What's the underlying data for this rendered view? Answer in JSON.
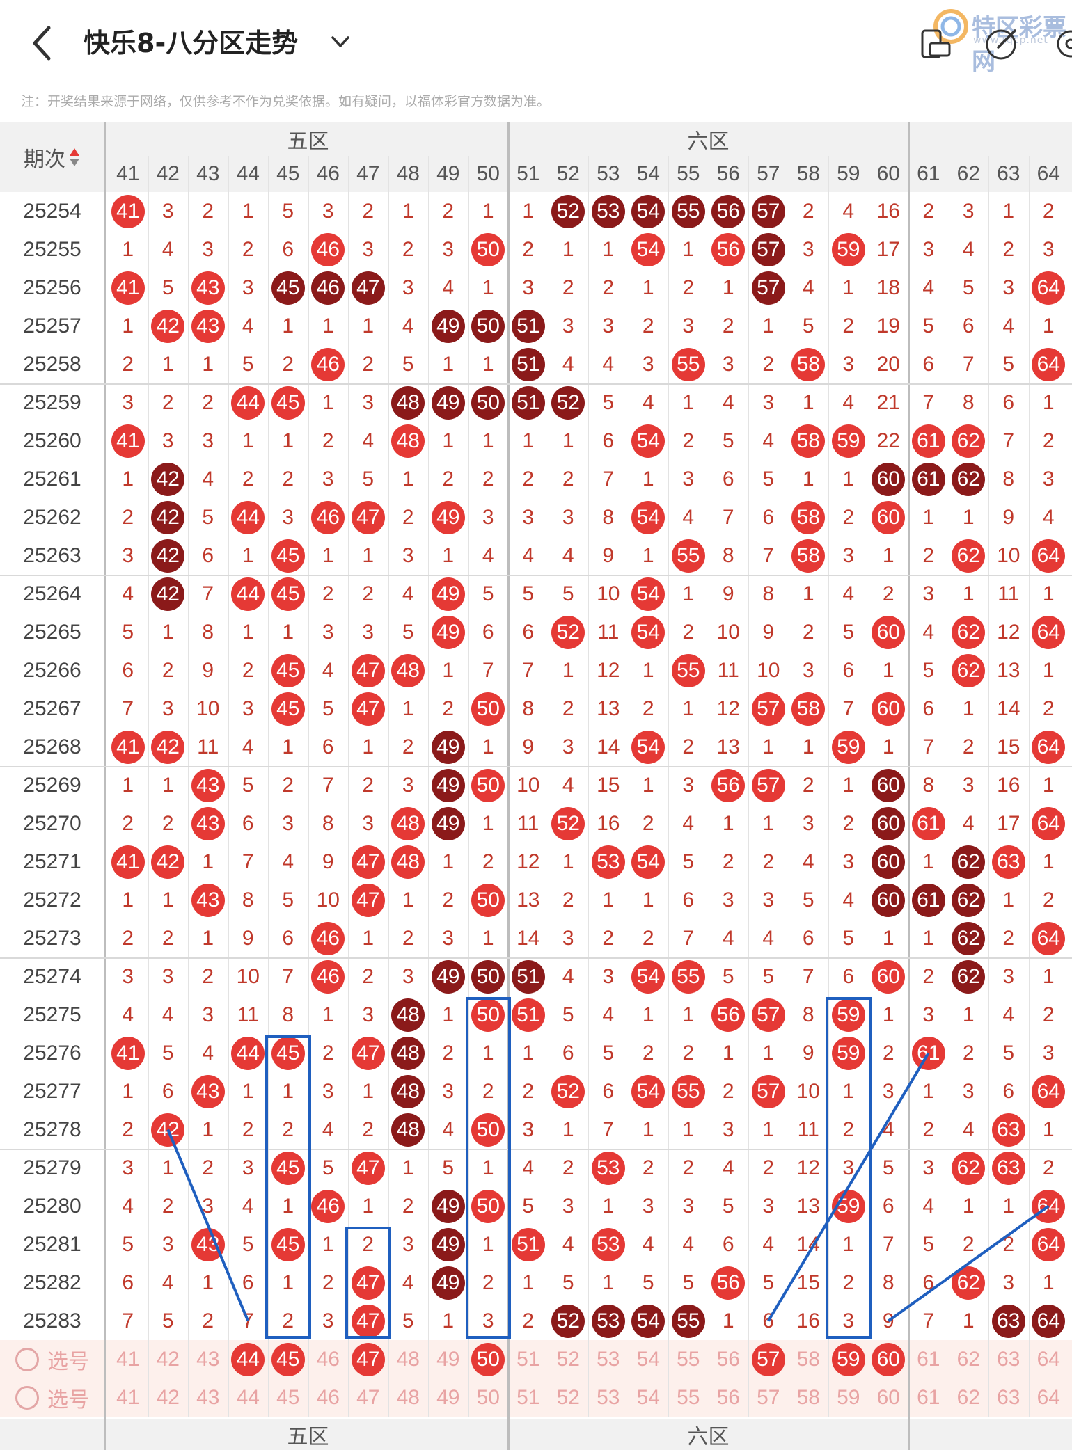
{
  "header": {
    "title": "快乐8-八分区走势",
    "watermark_text": "特区彩票网",
    "watermark_url": "www.tqcp.net"
  },
  "notice": "注：开奖结果来源于网络，仅供参考不作为兑奖依据。如有疑问，以福体彩官方数据为准。",
  "table": {
    "period_header": "期次",
    "zones": [
      {
        "label": "五区",
        "cols": [
          41,
          50
        ]
      },
      {
        "label": "六区",
        "cols": [
          51,
          60
        ]
      },
      {
        "label": "",
        "cols": [
          61,
          64
        ]
      }
    ],
    "columns": [
      "41",
      "42",
      "43",
      "44",
      "45",
      "46",
      "47",
      "48",
      "49",
      "50",
      "51",
      "52",
      "53",
      "54",
      "55",
      "56",
      "57",
      "58",
      "59",
      "60",
      "61",
      "62",
      "63",
      "64"
    ],
    "rows": [
      {
        "period": "25254",
        "cells": [
          "41",
          "3",
          "2",
          "1",
          "5",
          "3",
          "2",
          "1",
          "2",
          "1",
          "1",
          "52",
          "53",
          "54",
          "55",
          "56",
          "57",
          "2",
          "4",
          "16",
          "2",
          "3",
          "1",
          "2"
        ],
        "dark": [
          "52",
          "53",
          "54",
          "55",
          "56",
          "57"
        ]
      },
      {
        "period": "25255",
        "cells": [
          "1",
          "4",
          "3",
          "2",
          "6",
          "46",
          "3",
          "2",
          "3",
          "50",
          "2",
          "1",
          "1",
          "54",
          "1",
          "56",
          "57",
          "3",
          "59",
          "17",
          "3",
          "4",
          "2",
          "3"
        ],
        "dark": [
          "57"
        ]
      },
      {
        "period": "25256",
        "cells": [
          "41",
          "5",
          "43",
          "3",
          "45",
          "46",
          "47",
          "3",
          "4",
          "1",
          "3",
          "2",
          "2",
          "1",
          "2",
          "1",
          "57",
          "4",
          "1",
          "18",
          "4",
          "5",
          "3",
          "64"
        ],
        "dark": [
          "45",
          "46",
          "47",
          "57"
        ]
      },
      {
        "period": "25257",
        "cells": [
          "1",
          "42",
          "43",
          "4",
          "1",
          "1",
          "1",
          "4",
          "49",
          "50",
          "51",
          "3",
          "3",
          "2",
          "3",
          "2",
          "1",
          "5",
          "2",
          "19",
          "5",
          "6",
          "4",
          "1"
        ],
        "dark": [
          "49",
          "50",
          "51"
        ]
      },
      {
        "period": "25258",
        "cells": [
          "2",
          "1",
          "1",
          "5",
          "2",
          "46",
          "2",
          "5",
          "1",
          "1",
          "51",
          "4",
          "4",
          "3",
          "55",
          "3",
          "2",
          "58",
          "3",
          "20",
          "6",
          "7",
          "5",
          "64"
        ],
        "dark": [
          "51"
        ]
      },
      {
        "period": "25259",
        "cells": [
          "3",
          "2",
          "2",
          "44",
          "45",
          "1",
          "3",
          "48",
          "49",
          "50",
          "51",
          "52",
          "5",
          "4",
          "1",
          "4",
          "3",
          "1",
          "4",
          "21",
          "7",
          "8",
          "6",
          "1"
        ],
        "dark": [
          "48",
          "49",
          "50",
          "51",
          "52"
        ]
      },
      {
        "period": "25260",
        "cells": [
          "41",
          "3",
          "3",
          "1",
          "1",
          "2",
          "4",
          "48",
          "1",
          "1",
          "1",
          "1",
          "6",
          "54",
          "2",
          "5",
          "4",
          "58",
          "59",
          "22",
          "61",
          "62",
          "7",
          "2"
        ],
        "dark": []
      },
      {
        "period": "25261",
        "cells": [
          "1",
          "42",
          "4",
          "2",
          "2",
          "3",
          "5",
          "1",
          "2",
          "2",
          "2",
          "2",
          "7",
          "1",
          "3",
          "6",
          "5",
          "1",
          "1",
          "60",
          "61",
          "62",
          "8",
          "3"
        ],
        "dark": [
          "42",
          "60",
          "61",
          "62"
        ]
      },
      {
        "period": "25262",
        "cells": [
          "2",
          "42",
          "5",
          "44",
          "3",
          "46",
          "47",
          "2",
          "49",
          "3",
          "3",
          "3",
          "8",
          "54",
          "4",
          "7",
          "6",
          "58",
          "2",
          "60",
          "1",
          "1",
          "9",
          "4"
        ],
        "dark": [
          "42"
        ]
      },
      {
        "period": "25263",
        "cells": [
          "3",
          "42",
          "6",
          "1",
          "45",
          "1",
          "1",
          "3",
          "1",
          "4",
          "4",
          "4",
          "9",
          "1",
          "55",
          "8",
          "7",
          "58",
          "3",
          "1",
          "2",
          "62",
          "10",
          "64"
        ],
        "dark": [
          "42"
        ]
      },
      {
        "period": "25264",
        "cells": [
          "4",
          "42",
          "7",
          "44",
          "45",
          "2",
          "2",
          "4",
          "49",
          "5",
          "5",
          "5",
          "10",
          "54",
          "1",
          "9",
          "8",
          "1",
          "4",
          "2",
          "3",
          "1",
          "11",
          "1"
        ],
        "dark": [
          "42"
        ]
      },
      {
        "period": "25265",
        "cells": [
          "5",
          "1",
          "8",
          "1",
          "1",
          "3",
          "3",
          "5",
          "49",
          "6",
          "6",
          "52",
          "11",
          "54",
          "2",
          "10",
          "9",
          "2",
          "5",
          "60",
          "4",
          "62",
          "12",
          "64"
        ],
        "dark": []
      },
      {
        "period": "25266",
        "cells": [
          "6",
          "2",
          "9",
          "2",
          "45",
          "4",
          "47",
          "48",
          "1",
          "7",
          "7",
          "1",
          "12",
          "1",
          "55",
          "11",
          "10",
          "3",
          "6",
          "1",
          "5",
          "62",
          "13",
          "1"
        ],
        "dark": []
      },
      {
        "period": "25267",
        "cells": [
          "7",
          "3",
          "10",
          "3",
          "45",
          "5",
          "47",
          "1",
          "2",
          "50",
          "8",
          "2",
          "13",
          "2",
          "1",
          "12",
          "57",
          "58",
          "7",
          "60",
          "6",
          "1",
          "14",
          "2"
        ],
        "dark": []
      },
      {
        "period": "25268",
        "cells": [
          "41",
          "42",
          "11",
          "4",
          "1",
          "6",
          "1",
          "2",
          "49",
          "1",
          "9",
          "3",
          "14",
          "54",
          "2",
          "13",
          "1",
          "1",
          "59",
          "1",
          "7",
          "2",
          "15",
          "64"
        ],
        "dark": [
          "49"
        ]
      },
      {
        "period": "25269",
        "cells": [
          "1",
          "1",
          "43",
          "5",
          "2",
          "7",
          "2",
          "3",
          "49",
          "50",
          "10",
          "4",
          "15",
          "1",
          "3",
          "56",
          "57",
          "2",
          "1",
          "60",
          "8",
          "3",
          "16",
          "1"
        ],
        "dark": [
          "49",
          "60"
        ]
      },
      {
        "period": "25270",
        "cells": [
          "2",
          "2",
          "43",
          "6",
          "3",
          "8",
          "3",
          "48",
          "49",
          "1",
          "11",
          "52",
          "16",
          "2",
          "4",
          "1",
          "1",
          "3",
          "2",
          "60",
          "61",
          "4",
          "17",
          "64"
        ],
        "dark": [
          "49",
          "60"
        ]
      },
      {
        "period": "25271",
        "cells": [
          "41",
          "42",
          "1",
          "7",
          "4",
          "9",
          "47",
          "48",
          "1",
          "2",
          "12",
          "1",
          "53",
          "54",
          "5",
          "2",
          "2",
          "4",
          "3",
          "60",
          "1",
          "62",
          "63",
          "1"
        ],
        "dark": [
          "60",
          "62"
        ]
      },
      {
        "period": "25272",
        "cells": [
          "1",
          "1",
          "43",
          "8",
          "5",
          "10",
          "47",
          "1",
          "2",
          "50",
          "13",
          "2",
          "1",
          "1",
          "6",
          "3",
          "3",
          "5",
          "4",
          "60",
          "61",
          "62",
          "1",
          "2"
        ],
        "dark": [
          "60",
          "61",
          "62"
        ]
      },
      {
        "period": "25273",
        "cells": [
          "2",
          "2",
          "1",
          "9",
          "6",
          "46",
          "1",
          "2",
          "3",
          "1",
          "14",
          "3",
          "2",
          "2",
          "7",
          "4",
          "4",
          "6",
          "5",
          "1",
          "1",
          "62",
          "2",
          "64"
        ],
        "dark": [
          "62"
        ]
      },
      {
        "period": "25274",
        "cells": [
          "3",
          "3",
          "2",
          "10",
          "7",
          "46",
          "2",
          "3",
          "49",
          "50",
          "51",
          "4",
          "3",
          "54",
          "55",
          "5",
          "5",
          "7",
          "6",
          "60",
          "2",
          "62",
          "3",
          "1"
        ],
        "dark": [
          "49",
          "50",
          "51",
          "62"
        ]
      },
      {
        "period": "25275",
        "cells": [
          "4",
          "4",
          "3",
          "11",
          "8",
          "1",
          "3",
          "48",
          "1",
          "50",
          "51",
          "5",
          "4",
          "1",
          "1",
          "56",
          "57",
          "8",
          "59",
          "1",
          "3",
          "1",
          "4",
          "2"
        ],
        "dark": [
          "48"
        ]
      },
      {
        "period": "25276",
        "cells": [
          "41",
          "5",
          "4",
          "44",
          "45",
          "2",
          "47",
          "48",
          "2",
          "1",
          "1",
          "6",
          "5",
          "2",
          "2",
          "1",
          "1",
          "9",
          "59",
          "2",
          "61",
          "2",
          "5",
          "3"
        ],
        "dark": [
          "48"
        ]
      },
      {
        "period": "25277",
        "cells": [
          "1",
          "6",
          "43",
          "1",
          "1",
          "3",
          "1",
          "48",
          "3",
          "2",
          "2",
          "52",
          "6",
          "54",
          "55",
          "2",
          "57",
          "10",
          "1",
          "3",
          "1",
          "3",
          "6",
          "64"
        ],
        "dark": [
          "48"
        ]
      },
      {
        "period": "25278",
        "cells": [
          "2",
          "42",
          "1",
          "2",
          "2",
          "4",
          "2",
          "48",
          "4",
          "50",
          "3",
          "1",
          "7",
          "1",
          "1",
          "3",
          "1",
          "11",
          "2",
          "4",
          "2",
          "4",
          "63",
          "1"
        ],
        "dark": [
          "48"
        ]
      },
      {
        "period": "25279",
        "cells": [
          "3",
          "1",
          "2",
          "3",
          "45",
          "5",
          "47",
          "1",
          "5",
          "1",
          "4",
          "2",
          "53",
          "2",
          "2",
          "4",
          "2",
          "12",
          "3",
          "5",
          "3",
          "62",
          "63",
          "2"
        ],
        "dark": []
      },
      {
        "period": "25280",
        "cells": [
          "4",
          "2",
          "3",
          "4",
          "1",
          "46",
          "1",
          "2",
          "49",
          "50",
          "5",
          "3",
          "1",
          "3",
          "3",
          "5",
          "3",
          "13",
          "59",
          "6",
          "4",
          "1",
          "1",
          "64"
        ],
        "dark": [
          "49"
        ]
      },
      {
        "period": "25281",
        "cells": [
          "5",
          "3",
          "43",
          "5",
          "45",
          "1",
          "2",
          "3",
          "49",
          "1",
          "51",
          "4",
          "53",
          "4",
          "4",
          "6",
          "4",
          "14",
          "1",
          "7",
          "5",
          "2",
          "2",
          "64"
        ],
        "dark": [
          "49"
        ]
      },
      {
        "period": "25282",
        "cells": [
          "6",
          "4",
          "1",
          "6",
          "1",
          "2",
          "47",
          "4",
          "49",
          "2",
          "1",
          "5",
          "1",
          "5",
          "5",
          "56",
          "5",
          "15",
          "2",
          "8",
          "6",
          "62",
          "3",
          "1"
        ],
        "dark": [
          "49"
        ]
      },
      {
        "period": "25283",
        "cells": [
          "7",
          "5",
          "2",
          "7",
          "2",
          "3",
          "47",
          "5",
          "1",
          "3",
          "2",
          "52",
          "53",
          "54",
          "55",
          "1",
          "6",
          "16",
          "3",
          "9",
          "7",
          "1",
          "63",
          "64"
        ],
        "dark": [
          "52",
          "53",
          "54",
          "55",
          "63",
          "64"
        ]
      }
    ],
    "select_rows": [
      {
        "label": "选号",
        "balls": [
          "44",
          "45",
          "47",
          "50",
          "57",
          "59",
          "60"
        ]
      },
      {
        "label": "选号",
        "balls": []
      }
    ],
    "footer_zones": [
      "五区",
      "六区"
    ]
  },
  "colors": {
    "ball_red": "#e53935",
    "ball_dark": "#8b1a1a",
    "miss_text": "#c0392b",
    "selection_box": "#1f5fbf"
  }
}
